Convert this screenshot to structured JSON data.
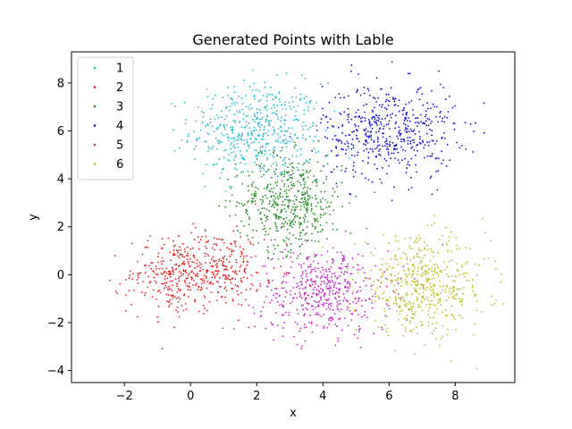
{
  "chart_data": {
    "type": "scatter",
    "title": "Generated Points with Lable",
    "xlabel": "x",
    "ylabel": "y",
    "xlim": [
      -3.6,
      9.8
    ],
    "ylim": [
      -4.5,
      9.3
    ],
    "xticks": [
      -2,
      0,
      2,
      4,
      6,
      8
    ],
    "yticks": [
      -4,
      -2,
      0,
      2,
      4,
      6,
      8
    ],
    "grid": false,
    "legend_position": "top-left",
    "series": [
      {
        "name": "1",
        "color": "#17becf",
        "centers": [
          [
            2.0,
            6.0
          ]
        ],
        "spread": [
          1.0,
          1.0
        ],
        "count": 500
      },
      {
        "name": "2",
        "color": "#e6191b",
        "centers": [
          [
            -0.5,
            0.0
          ],
          [
            0.8,
            0.2
          ]
        ],
        "spread": [
          0.7,
          0.8
        ],
        "count": 500
      },
      {
        "name": "3",
        "color": "#1a8c1a",
        "centers": [
          [
            3.0,
            3.0
          ]
        ],
        "spread": [
          0.8,
          1.0
        ],
        "count": 500
      },
      {
        "name": "4",
        "color": "#0b0bd9",
        "centers": [
          [
            6.0,
            6.0
          ]
        ],
        "spread": [
          1.0,
          1.0
        ],
        "count": 500
      },
      {
        "name": "5",
        "color": "#c81ec8",
        "centers": [
          [
            4.0,
            -0.7
          ]
        ],
        "spread": [
          1.0,
          0.9
        ],
        "count": 500
      },
      {
        "name": "6",
        "color": "#bcbc18",
        "centers": [
          [
            7.0,
            -0.5
          ]
        ],
        "spread": [
          1.0,
          1.0
        ],
        "count": 500
      }
    ]
  }
}
